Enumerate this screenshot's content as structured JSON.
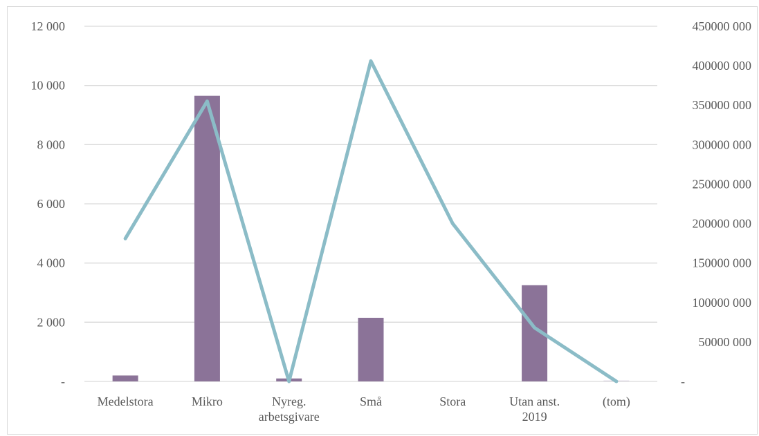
{
  "chart_data": {
    "type": "bar+line",
    "title": "",
    "categories": [
      [
        "Medelstora"
      ],
      [
        "Mikro"
      ],
      [
        "Nyreg.",
        "arbetsgivare"
      ],
      [
        "Små"
      ],
      [
        "Stora"
      ],
      [
        "Utan anst.",
        "2019"
      ],
      [
        "(tom)"
      ]
    ],
    "series": [
      {
        "type": "bar",
        "axis": "left",
        "color": "#8b7398",
        "values": [
          200,
          9650,
          100,
          2150,
          0,
          3250,
          30
        ]
      },
      {
        "type": "line",
        "axis": "right",
        "color": "#8bbcc7",
        "values": [
          181000000,
          355000000,
          0,
          406000000,
          200000000,
          68000000,
          0
        ]
      }
    ],
    "y_left": {
      "min": 0,
      "max": 12000,
      "ticks": [
        0,
        2000,
        4000,
        6000,
        8000,
        10000,
        12000
      ],
      "tick_labels": [
        "-",
        "2 000",
        "4 000",
        "6 000",
        "8 000",
        "10 000",
        "12 000"
      ]
    },
    "y_right": {
      "min": 0,
      "max": 450000000,
      "ticks": [
        0,
        50000000,
        100000000,
        150000000,
        200000000,
        250000000,
        300000000,
        350000000,
        400000000,
        450000000
      ],
      "tick_labels": [
        "-",
        "50000 000",
        "100000 000",
        "150000 000",
        "200000 000",
        "250000 000",
        "300000 000",
        "350000 000",
        "400000 000",
        "450000 000"
      ]
    },
    "grid": true,
    "legend": "none"
  }
}
